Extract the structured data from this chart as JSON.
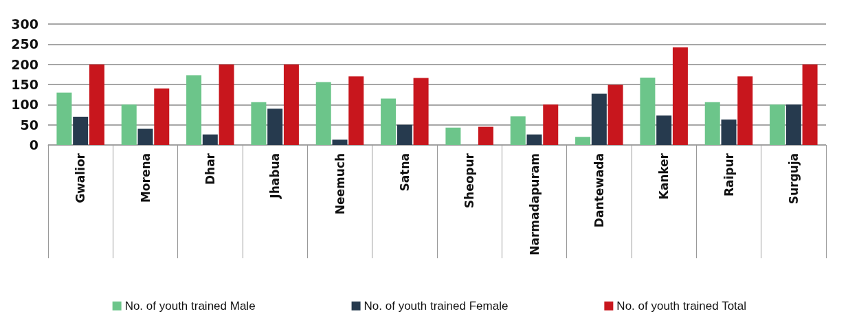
{
  "chart_data": {
    "type": "bar",
    "categories": [
      "Gwalior",
      "Morena",
      "Dhar",
      "Jhabua",
      "Neemuch",
      "Satna",
      "Sheopur",
      "Narmadapuram",
      "Dantewada",
      "Kanker",
      "Raipur",
      "Surguja"
    ],
    "series": [
      {
        "name": "No. of youth trained Male",
        "color": "#6cc58a",
        "values": [
          130,
          100,
          173,
          106,
          156,
          115,
          43,
          71,
          20,
          167,
          106,
          100
        ]
      },
      {
        "name": "No. of youth trained Female",
        "color": "#263a4e",
        "values": [
          70,
          40,
          26,
          90,
          13,
          50,
          0,
          26,
          127,
          73,
          63,
          100
        ]
      },
      {
        "name": "No. of youth trained Total",
        "color": "#c8161d",
        "values": [
          200,
          140,
          200,
          200,
          170,
          166,
          45,
          100,
          149,
          242,
          170,
          200
        ]
      }
    ],
    "ylim": [
      0,
      300
    ],
    "yticks": [
      0,
      50,
      100,
      150,
      200,
      250,
      300
    ],
    "grid": "y",
    "legend": "bottom"
  }
}
